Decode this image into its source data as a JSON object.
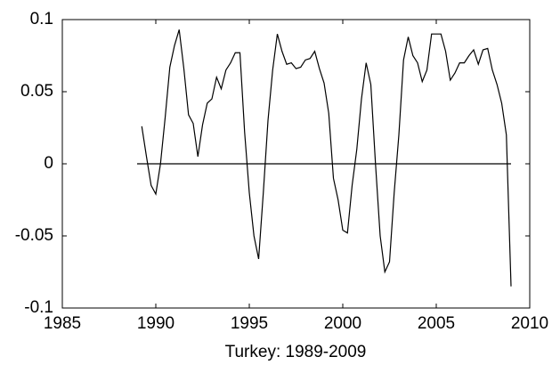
{
  "chart_data": {
    "type": "line",
    "xlabel": "Turkey: 1989-2009",
    "xlim": [
      1985,
      2010
    ],
    "xticks": [
      1985,
      1990,
      1995,
      2000,
      2005,
      2010
    ],
    "ylim": [
      -0.1,
      0.1
    ],
    "yticks": [
      -0.1,
      -0.05,
      0,
      0.05,
      0.1
    ],
    "series": [
      {
        "color": "#000000",
        "x": [
          1989.25,
          1989.5,
          1989.75,
          1990,
          1990.25,
          1990.5,
          1990.75,
          1991,
          1991.25,
          1991.5,
          1991.75,
          1992,
          1992.25,
          1992.5,
          1992.75,
          1993,
          1993.25,
          1993.5,
          1993.75,
          1994,
          1994.25,
          1994.5,
          1994.75,
          1995,
          1995.25,
          1995.5,
          1995.75,
          1996,
          1996.25,
          1996.5,
          1996.75,
          1997,
          1997.25,
          1997.5,
          1997.75,
          1998,
          1998.25,
          1998.5,
          1998.75,
          1999,
          1999.25,
          1999.5,
          1999.75,
          2000,
          2000.25,
          2000.5,
          2000.75,
          2001,
          2001.25,
          2001.5,
          2001.75,
          2002,
          2002.25,
          2002.5,
          2002.75,
          2003,
          2003.25,
          2003.5,
          2003.75,
          2004,
          2004.25,
          2004.5,
          2004.75,
          2005,
          2005.25,
          2005.5,
          2005.75,
          2006,
          2006.25,
          2006.5,
          2006.75,
          2007,
          2007.25,
          2007.5,
          2007.75,
          2008,
          2008.25,
          2008.5,
          2008.75,
          2009
        ],
        "values": [
          0.026,
          0.005,
          -0.015,
          -0.021,
          0.0,
          0.032,
          0.067,
          0.082,
          0.093,
          0.066,
          0.034,
          0.028,
          0.005,
          0.027,
          0.042,
          0.045,
          0.06,
          0.052,
          0.065,
          0.07,
          0.077,
          0.077,
          0.022,
          -0.02,
          -0.05,
          -0.066,
          -0.02,
          0.03,
          0.065,
          0.09,
          0.078,
          0.069,
          0.07,
          0.066,
          0.067,
          0.072,
          0.073,
          0.078,
          0.066,
          0.056,
          0.035,
          -0.01,
          -0.025,
          -0.046,
          -0.048,
          -0.015,
          0.01,
          0.045,
          0.07,
          0.055,
          0.0,
          -0.05,
          -0.075,
          -0.068,
          -0.02,
          0.02,
          0.072,
          0.088,
          0.075,
          0.07,
          0.057,
          0.065,
          0.09,
          0.09,
          0.09,
          0.078,
          0.058,
          0.063,
          0.07,
          0.07,
          0.075,
          0.079,
          0.069,
          0.079,
          0.08,
          0.065,
          0.055,
          0.042,
          0.02,
          -0.085
        ]
      },
      {
        "color": "#000000",
        "x": [
          1989,
          2009
        ],
        "values": [
          0,
          0
        ]
      }
    ]
  }
}
